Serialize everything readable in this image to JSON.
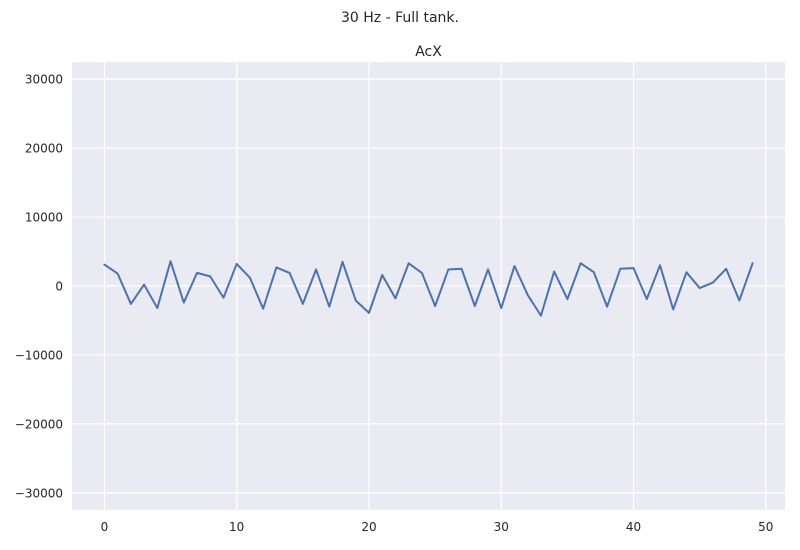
{
  "figure": {
    "suptitle": "30 Hz - Full tank."
  },
  "colors": {
    "background": "#ffffff",
    "axes_face": "#eaeaf2",
    "grid": "#ffffff",
    "line": "#4c72b0"
  },
  "chart_data": {
    "type": "line",
    "title": "AcX",
    "xlabel": "",
    "ylabel": "",
    "grid": true,
    "legend": "none",
    "xlim": [
      -2.45,
      51.45
    ],
    "ylim": [
      -32500,
      32500
    ],
    "xticks": [
      0,
      10,
      20,
      30,
      40,
      50
    ],
    "yticks": [
      -30000,
      -20000,
      -10000,
      0,
      10000,
      20000,
      30000
    ],
    "ytick_labels": [
      "−30000",
      "−20000",
      "−10000",
      "0",
      "10000",
      "20000",
      "30000"
    ],
    "xtick_labels": [
      "0",
      "10",
      "20",
      "30",
      "40",
      "50"
    ],
    "series": [
      {
        "x": [
          0,
          1,
          2,
          3,
          4,
          5,
          6,
          7,
          8,
          9,
          10,
          11,
          12,
          13,
          14,
          15,
          16,
          17,
          18,
          19,
          20,
          21,
          22,
          23,
          24,
          25,
          26,
          27,
          28,
          29,
          30,
          31,
          32,
          33,
          34,
          35,
          36,
          37,
          38,
          39,
          40,
          41,
          42,
          43,
          44,
          45,
          46,
          47,
          48,
          49
        ],
        "values": [
          3100,
          1800,
          -2600,
          200,
          -3200,
          3600,
          -2400,
          1900,
          1400,
          -1700,
          3200,
          1200,
          -3300,
          2700,
          1900,
          -2600,
          2400,
          -3000,
          3500,
          -2100,
          -3900,
          1600,
          -1800,
          3300,
          1900,
          -2900,
          2400,
          2500,
          -2900,
          2400,
          -3200,
          2900,
          -1300,
          -4300,
          2100,
          -1900,
          3300,
          2000,
          -3000,
          2500,
          2600,
          -1900,
          3000,
          -3400,
          2000,
          -300,
          500,
          2500,
          -2100,
          3300
        ]
      }
    ]
  }
}
